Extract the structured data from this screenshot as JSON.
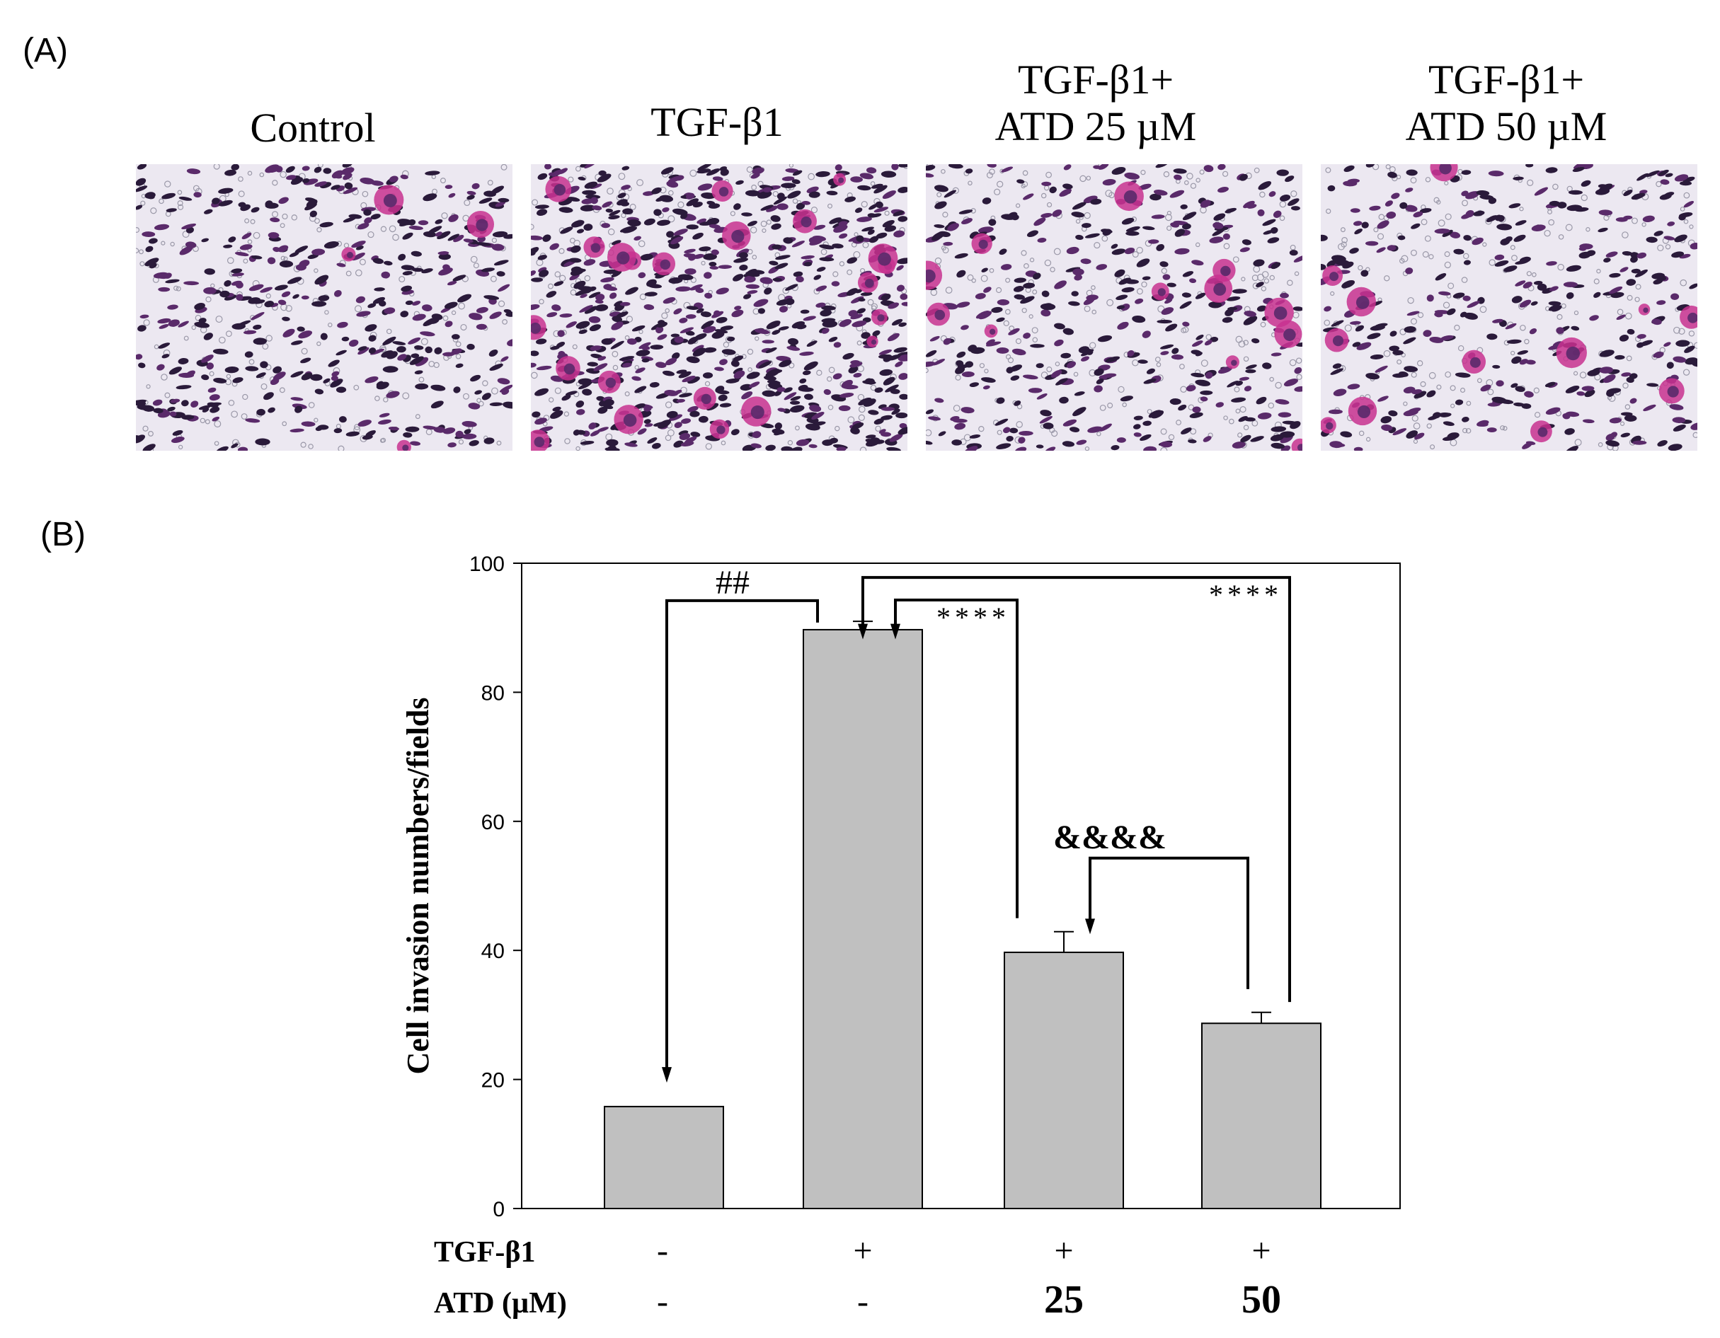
{
  "panel_a": {
    "label": "(A)",
    "images": [
      {
        "title_line1": "Control",
        "title_line2": "",
        "density": 0.6,
        "magenta_density": 0.1
      },
      {
        "title_line1": "TGF-β1",
        "title_line2": "",
        "density": 1.0,
        "magenta_density": 0.55
      },
      {
        "title_line1": "TGF-β1+",
        "title_line2": "ATD 25 µM",
        "density": 0.55,
        "magenta_density": 0.3
      },
      {
        "title_line1": "TGF-β1+",
        "title_line2": "ATD 50 µM",
        "density": 0.5,
        "magenta_density": 0.3
      }
    ],
    "colors": {
      "background": "#ece8f1",
      "cell_dark": "#2a1a3a",
      "cell_purple": "#5a2a6a",
      "cell_magenta": "#c8318f"
    }
  },
  "panel_b": {
    "label": "(B)",
    "treatment_rows": [
      {
        "label": "TGF-β1",
        "values": [
          "-",
          "+",
          "+",
          "+"
        ]
      },
      {
        "label": "ATD (µM)",
        "values": [
          "-",
          "-",
          "25",
          "50"
        ]
      }
    ]
  },
  "chart_data": {
    "type": "bar",
    "categories": [
      "Control",
      "TGF-β1",
      "TGF-β1 + ATD 25 µM",
      "TGF-β1 + ATD 50 µM"
    ],
    "values": [
      15.8,
      89.7,
      39.7,
      28.7
    ],
    "errors": [
      0,
      1.3,
      3.2,
      1.7
    ],
    "ylabel": "Cell invasion numbers/fields",
    "ylim": [
      0,
      100
    ],
    "yticks": [
      0,
      20,
      40,
      60,
      80,
      100
    ],
    "bar_color": "#c0c0c0",
    "significance": [
      {
        "from": 1,
        "to": 0,
        "label": "##",
        "bracket_y": 94.2
      },
      {
        "from": 2,
        "to": 1,
        "label": "****",
        "bracket_y": 94.3
      },
      {
        "from": 3,
        "to": 1,
        "label": "****",
        "bracket_y": 97.8
      },
      {
        "from": 3,
        "to": 2,
        "label": "&&&&",
        "bracket_y": 54.3
      }
    ]
  }
}
